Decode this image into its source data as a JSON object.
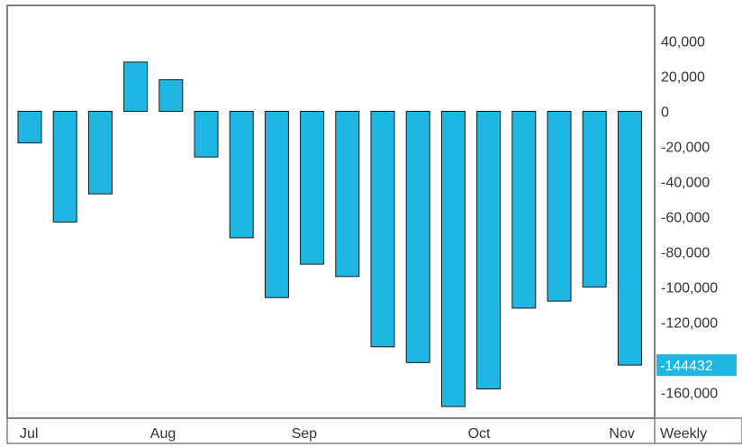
{
  "chart_data": {
    "type": "bar",
    "title": "",
    "xlabel": "",
    "ylabel": "",
    "frequency_label": "Weekly",
    "month_labels": [
      "Jul",
      "Aug",
      "Sep",
      "Oct",
      "Nov"
    ],
    "month_label_after_bar": [
      0,
      4,
      8,
      13,
      17
    ],
    "values": [
      -18000,
      -63000,
      -47000,
      28000,
      18000,
      -26000,
      -72000,
      -106000,
      -87000,
      -94000,
      -134000,
      -143000,
      -168000,
      -158000,
      -112000,
      -108000,
      -100000,
      -144432
    ],
    "last_value": "-144432",
    "ylim": [
      -175000,
      60000
    ],
    "yticks": [
      40000,
      20000,
      0,
      -20000,
      -40000,
      -60000,
      -80000,
      -100000,
      -120000,
      -140000,
      -160000
    ],
    "ytick_labels": [
      "40,000",
      "20,000",
      "0",
      "-20,000",
      "-40,000",
      "-60,000",
      "-80,000",
      "-100,000",
      "-120,000",
      "",
      "-160,000"
    ],
    "grid": false,
    "legend": "none",
    "colors": {
      "bar_fill": "#1fb6e3",
      "bar_stroke": "#1a1a1a",
      "frame": "#808080",
      "last_value_bg": "#1fb6e3"
    }
  }
}
